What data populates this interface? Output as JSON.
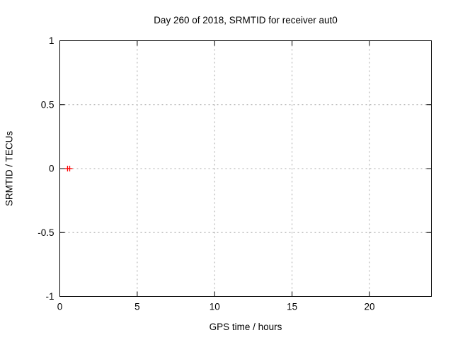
{
  "window": {
    "background": "#ffffff",
    "text_color": "#000000"
  },
  "chart_data": {
    "type": "scatter",
    "title": "Day 260 of 2018, SRMTID for receiver aut0",
    "xlabel": "GPS time / hours",
    "ylabel": "SRMTID / TECUs",
    "xlim": [
      0,
      24
    ],
    "ylim": [
      -1,
      1
    ],
    "xticks": [
      0,
      5,
      10,
      15,
      20
    ],
    "yticks": [
      -1,
      -0.5,
      0,
      0.5,
      1
    ],
    "grid": true,
    "grid_style": "dotted",
    "grid_color": "#a8a8a8",
    "border_color": "#000000",
    "tick_label_color": "#000000",
    "legend": "none",
    "series": [
      {
        "name": "SRMTID",
        "marker": "plus",
        "color": "#ff0000",
        "x": [
          0.5,
          0.64
        ],
        "y": [
          0,
          0
        ]
      }
    ]
  }
}
